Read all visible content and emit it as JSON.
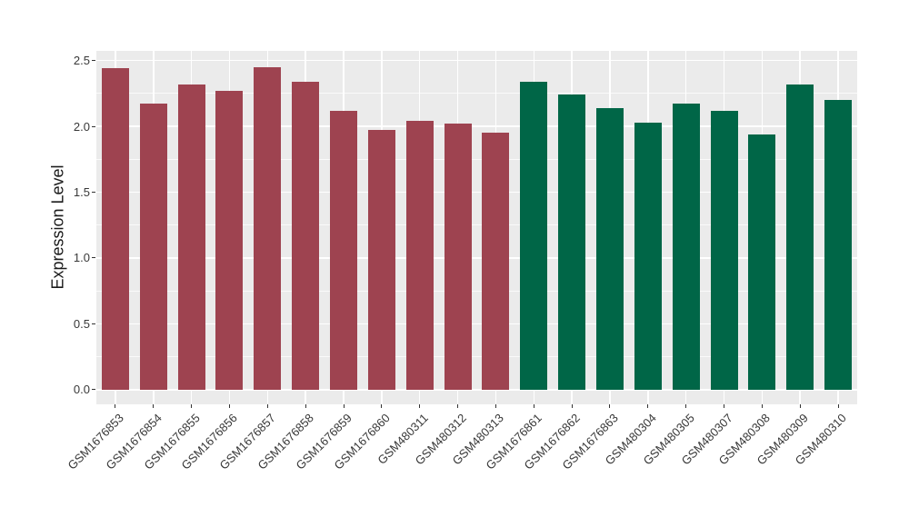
{
  "chart_data": {
    "type": "bar",
    "title": "",
    "xlabel": "",
    "ylabel": "Expression Level",
    "ylim": [
      0,
      2.57
    ],
    "yticks": [
      0.0,
      0.5,
      1.0,
      1.5,
      2.0,
      2.5
    ],
    "ytick_labels": [
      "0.0",
      "0.5",
      "1.0",
      "1.5",
      "2.0",
      "2.5"
    ],
    "minor_yticks": [
      0.25,
      0.75,
      1.25,
      1.75,
      2.25
    ],
    "grid": "on",
    "legend_position": "none",
    "categories": [
      "GSM1676853",
      "GSM1676854",
      "GSM1676855",
      "GSM1676856",
      "GSM1676857",
      "GSM1676858",
      "GSM1676859",
      "GSM1676860",
      "GSM480311",
      "GSM480312",
      "GSM480313",
      "GSM1676861",
      "GSM1676862",
      "GSM1676863",
      "GSM480304",
      "GSM480305",
      "GSM480307",
      "GSM480308",
      "GSM480309",
      "GSM480310"
    ],
    "values": [
      2.44,
      2.17,
      2.32,
      2.27,
      2.45,
      2.34,
      2.12,
      1.97,
      2.04,
      2.02,
      1.95,
      2.34,
      2.24,
      2.14,
      2.03,
      2.17,
      2.12,
      1.94,
      2.32,
      2.2
    ],
    "bar_colors": [
      "#9E4350",
      "#9E4350",
      "#9E4350",
      "#9E4350",
      "#9E4350",
      "#9E4350",
      "#9E4350",
      "#9E4350",
      "#9E4350",
      "#9E4350",
      "#9E4350",
      "#006647",
      "#006647",
      "#006647",
      "#006647",
      "#006647",
      "#006647",
      "#006647",
      "#006647",
      "#006647"
    ],
    "colors": {
      "group_red": "#9E4350",
      "group_green": "#006647",
      "panel_background": "#EBEBEB",
      "gridline": "#FFFFFF",
      "axis_text": "#383838",
      "tick_mark": "#333333"
    }
  }
}
